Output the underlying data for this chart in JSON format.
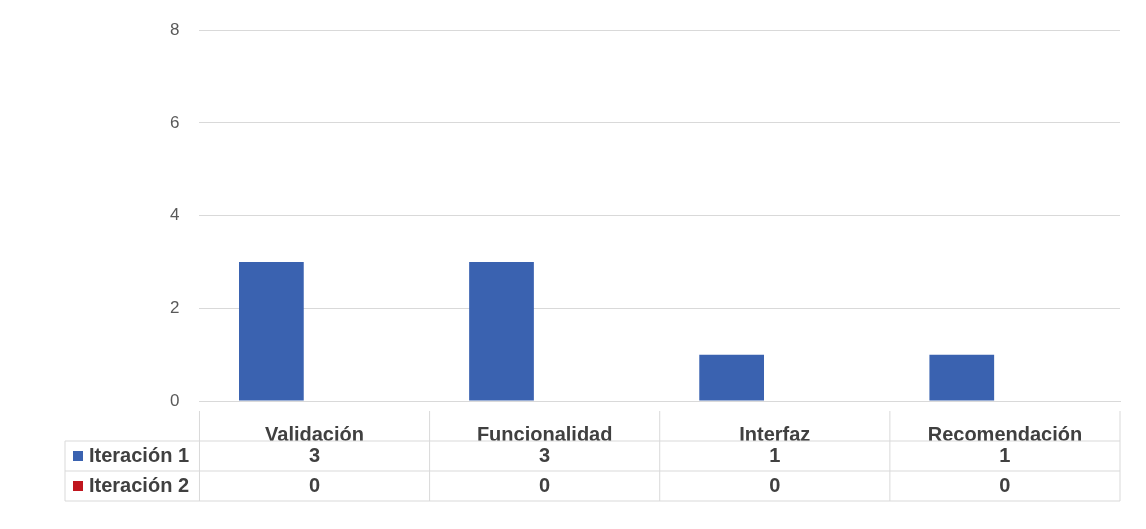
{
  "chart_data": {
    "type": "bar",
    "categories": [
      "Validación",
      "Funcionalidad",
      "Interfaz",
      "Recomendación"
    ],
    "series": [
      {
        "name": "Iteración 1",
        "color": "#3a62b0",
        "values": [
          3,
          3,
          1,
          1
        ]
      },
      {
        "name": "Iteración 2",
        "color": "#c0161e",
        "values": [
          0,
          0,
          0,
          0
        ]
      }
    ],
    "ylim": [
      0,
      8
    ],
    "yticks": [
      0,
      2,
      4,
      6,
      8
    ],
    "grid": "y",
    "legend": "bottom",
    "data_labels": true
  }
}
